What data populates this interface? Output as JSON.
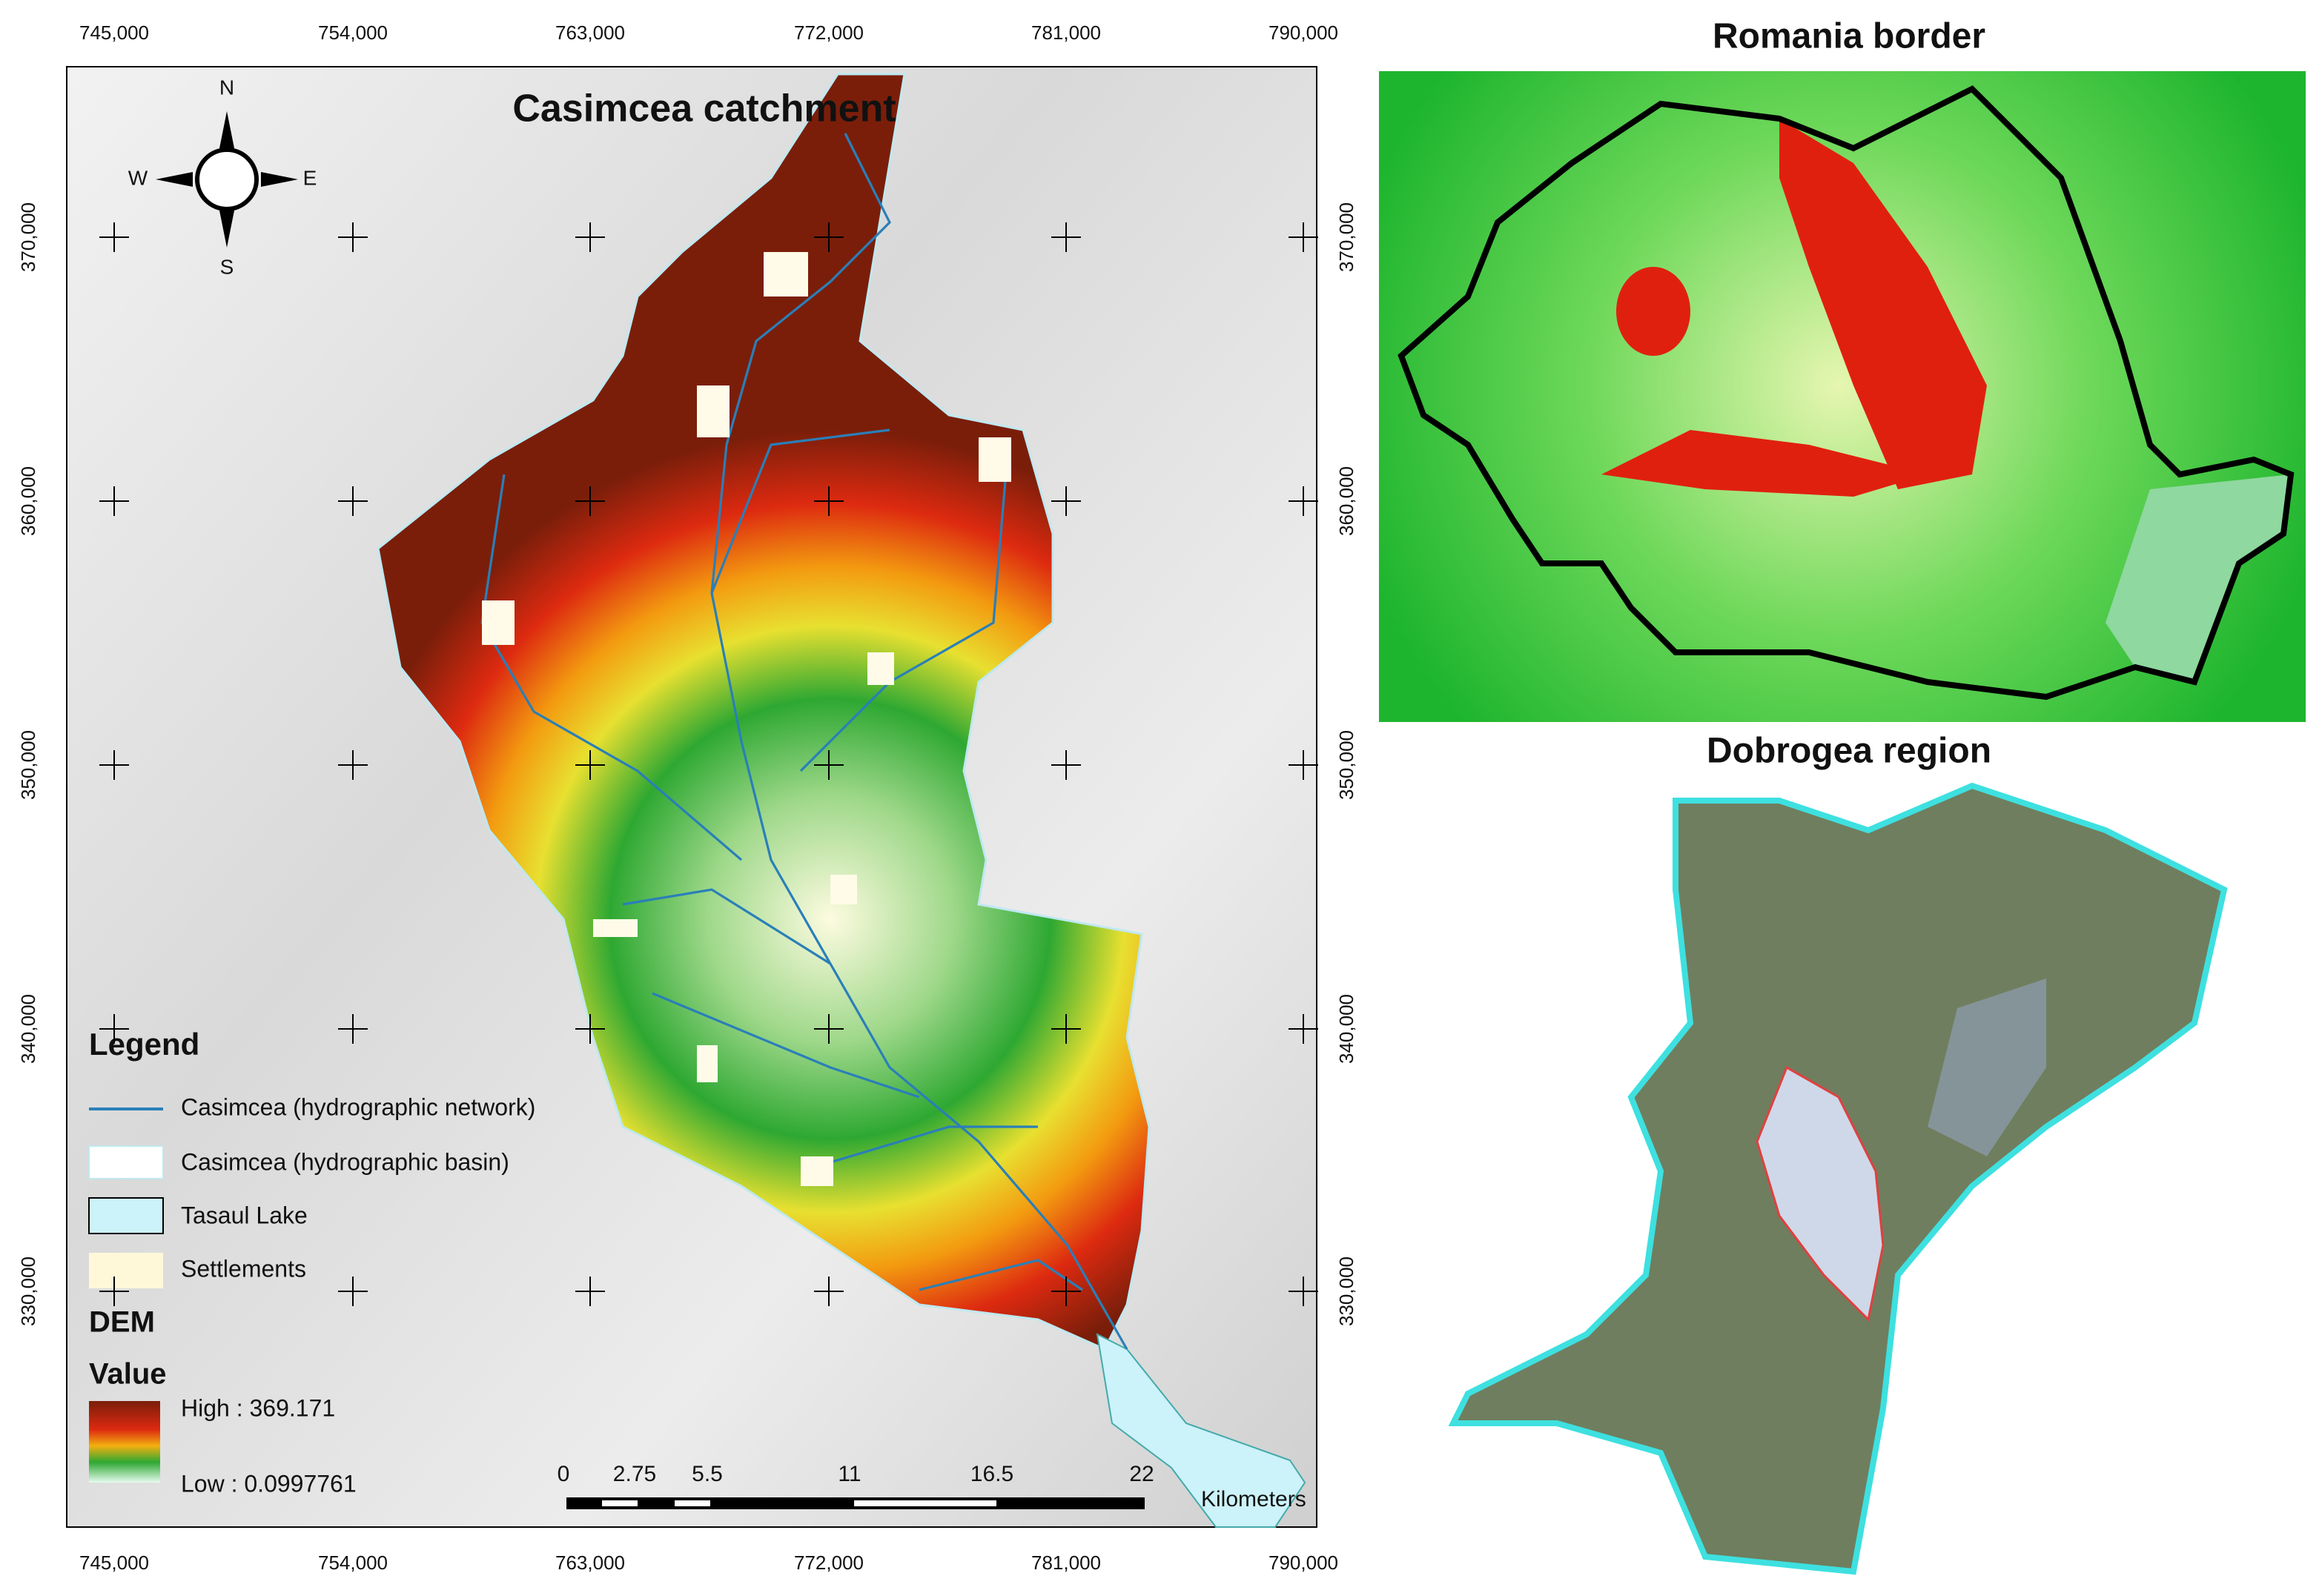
{
  "main_map": {
    "title": "Casimcea catchment",
    "compass": {
      "n": "N",
      "s": "S",
      "e": "E",
      "w": "W"
    },
    "x_ticks": [
      "745,000",
      "754,000",
      "763,000",
      "772,000",
      "781,000",
      "790,000"
    ],
    "y_ticks": [
      "370,000",
      "360,000",
      "350,000",
      "340,000",
      "330,000"
    ],
    "legend": {
      "title": "Legend",
      "items": [
        "Casimcea (hydrographic network)",
        "Casimcea (hydrographic basin)",
        "Tasaul Lake",
        "Settlements"
      ]
    },
    "dem": {
      "title": "DEM",
      "subtitle": "Value",
      "high": "High : 369.171",
      "low": "Low : 0.0997761"
    },
    "scale_bar": {
      "labels": [
        "0",
        "2.75",
        "5.5",
        "11",
        "16.5",
        "22"
      ],
      "unit": "Kilometers"
    }
  },
  "inset_romania": {
    "title": "Romania border"
  },
  "inset_dobrogea": {
    "title": "Dobrogea region"
  }
}
